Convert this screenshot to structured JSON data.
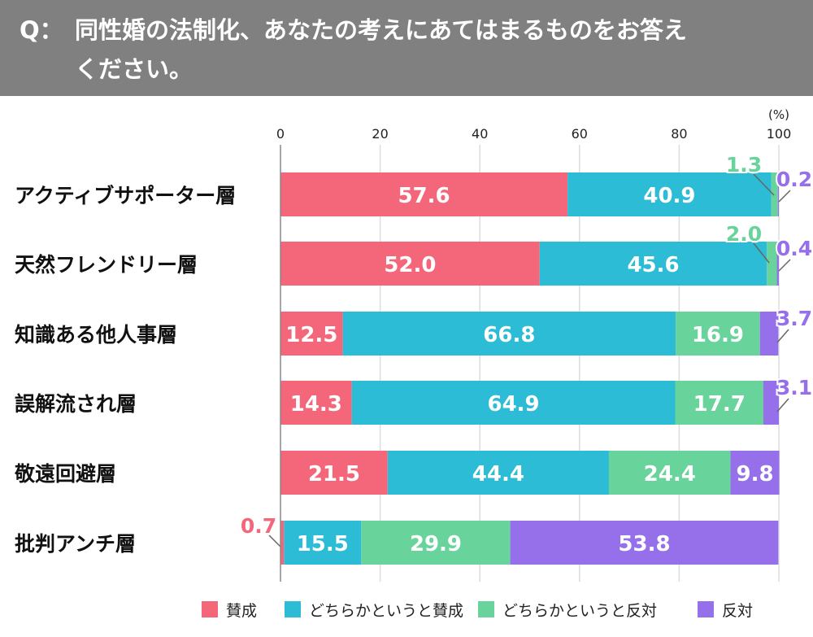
{
  "title": {
    "prefix": "Q：",
    "line1": "同性婚の法制化、あなたの考えにあてはまるものをお答え",
    "line2": "ください。"
  },
  "chart_data": {
    "type": "bar",
    "orientation": "horizontal",
    "stacked": true,
    "unit_label": "(%)",
    "xlim": [
      0,
      100
    ],
    "xticks": [
      0,
      20,
      40,
      60,
      80,
      100
    ],
    "grid": true,
    "legend_position": "bottom",
    "categories": [
      "アクティブサポーター層",
      "天然フレンドリー層",
      "知識ある他人事層",
      "誤解流され層",
      "敬遠回避層",
      "批判アンチ層"
    ],
    "series": [
      {
        "name": "賛成",
        "color": "#f4677a",
        "values": [
          57.6,
          52.0,
          12.5,
          14.3,
          21.5,
          0.7
        ]
      },
      {
        "name": "どちらかというと賛成",
        "color": "#2dbcd5",
        "values": [
          40.9,
          45.6,
          66.8,
          64.9,
          44.4,
          15.5
        ]
      },
      {
        "name": "どちらかというと反対",
        "color": "#69d39c",
        "values": [
          1.3,
          2.0,
          16.9,
          17.7,
          24.4,
          29.9
        ]
      },
      {
        "name": "反対",
        "color": "#9670ea",
        "values": [
          0.2,
          0.4,
          3.7,
          3.1,
          9.8,
          53.8
        ]
      }
    ]
  }
}
